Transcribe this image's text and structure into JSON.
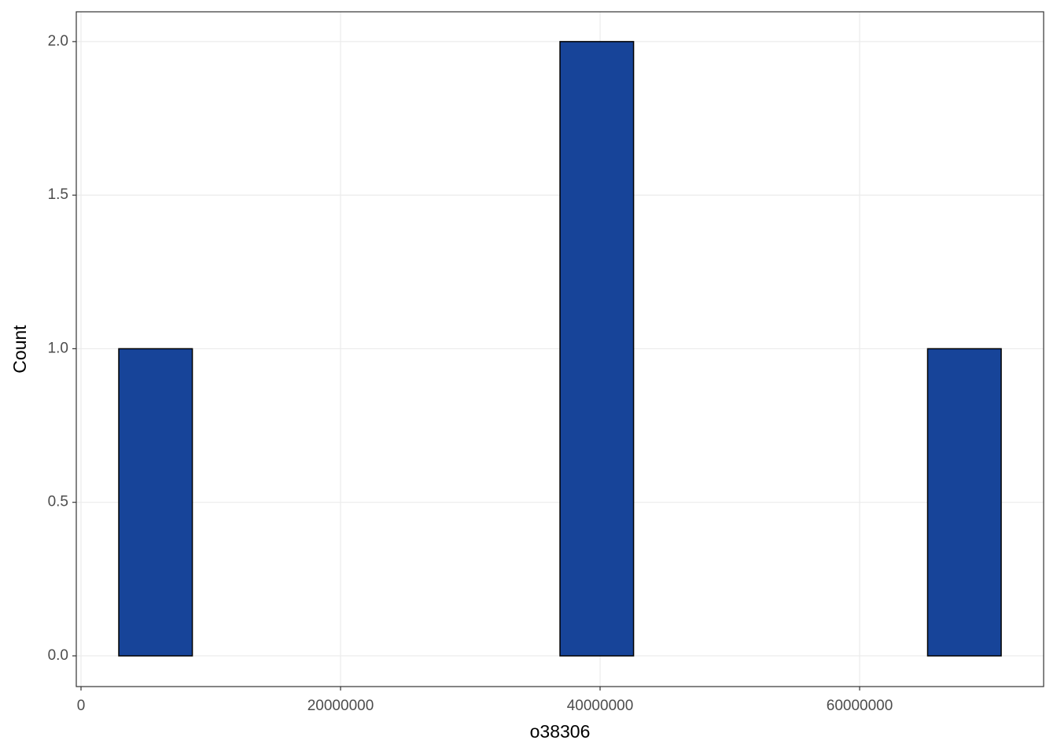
{
  "chart_data": {
    "type": "histogram",
    "x_label": "o38306",
    "y_label": "Count",
    "bins": [
      2910000,
      8580000,
      14240000,
      19910000,
      25580000,
      31240000,
      36910000,
      42580000,
      48240000,
      53910000,
      59580000,
      65240000,
      70910000
    ],
    "values": [
      1,
      0,
      0,
      0,
      0,
      0,
      2,
      0,
      0,
      0,
      0,
      1
    ],
    "color": "#174499",
    "xlim": [
      -364000,
      74180000
    ],
    "xticks": [
      0,
      20000000,
      40000000,
      60000000
    ],
    "ylim": [
      -0.1,
      2.097
    ],
    "yticks": [
      {
        "value": 0,
        "label": "0.0"
      },
      {
        "value": 0.5,
        "label": "0.5"
      },
      {
        "value": 1,
        "label": "1.0"
      },
      {
        "value": 1.5,
        "label": "1.5"
      },
      {
        "value": 2,
        "label": "2.0"
      }
    ],
    "grid": true
  }
}
